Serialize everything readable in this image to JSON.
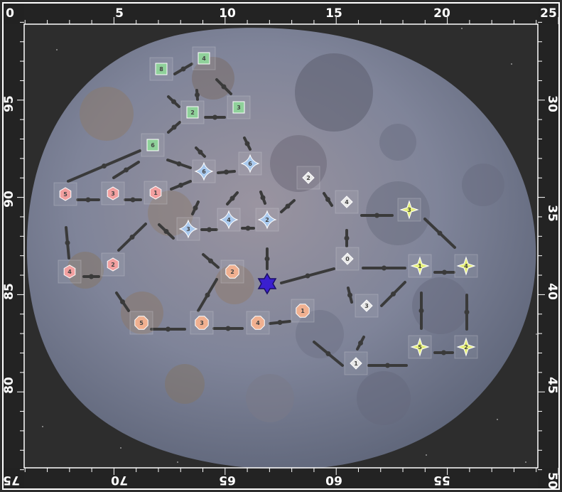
{
  "map": {
    "border_color": "#ffffff",
    "background_color": "#2d2d2d",
    "asteroid_color": "#7d8297",
    "link_color": "#3a3a3a",
    "player_marker": {
      "icon": "blue-star-icon",
      "color": "#3a1fcf"
    }
  },
  "ruler": {
    "top": [
      "0",
      "5",
      "10",
      "15",
      "20",
      "25"
    ],
    "right": [
      "30",
      "35",
      "40",
      "45",
      "50"
    ],
    "bottom": [
      "75",
      "70",
      "65",
      "60",
      "55"
    ],
    "left": [
      "95",
      "90",
      "85",
      "80"
    ]
  },
  "groups": [
    {
      "id": "green",
      "shape": "square",
      "color": "#8fd19a",
      "nodes": [
        {
          "label": "8"
        },
        {
          "label": "4"
        },
        {
          "label": "2"
        },
        {
          "label": "3"
        },
        {
          "label": "6"
        }
      ]
    },
    {
      "id": "red",
      "shape": "hexagon",
      "color": "#f2a0a0",
      "nodes": [
        {
          "label": "5"
        },
        {
          "label": "3"
        },
        {
          "label": "1"
        },
        {
          "label": "4"
        },
        {
          "label": "2"
        }
      ]
    },
    {
      "id": "blue",
      "shape": "diamond-star",
      "color": "#a9c9ee",
      "nodes": [
        {
          "label": "6"
        },
        {
          "label": "6"
        },
        {
          "label": "3"
        },
        {
          "label": "4"
        },
        {
          "label": "2"
        }
      ]
    },
    {
      "id": "orange",
      "shape": "octagon",
      "color": "#f0b090",
      "nodes": [
        {
          "label": "2"
        },
        {
          "label": "1"
        },
        {
          "label": "5"
        },
        {
          "label": "3"
        },
        {
          "label": "4"
        }
      ]
    },
    {
      "id": "gray",
      "shape": "diamond",
      "color": "#e8e8e8",
      "nodes": [
        {
          "label": "2"
        },
        {
          "label": "4"
        },
        {
          "label": "0"
        },
        {
          "label": "3"
        },
        {
          "label": "1"
        }
      ]
    },
    {
      "id": "yellow",
      "shape": "star",
      "color": "#e6f07a",
      "nodes": [
        {
          "label": "3"
        },
        {
          "label": "1"
        },
        {
          "label": "4"
        },
        {
          "label": "5"
        },
        {
          "label": "2"
        }
      ]
    }
  ]
}
